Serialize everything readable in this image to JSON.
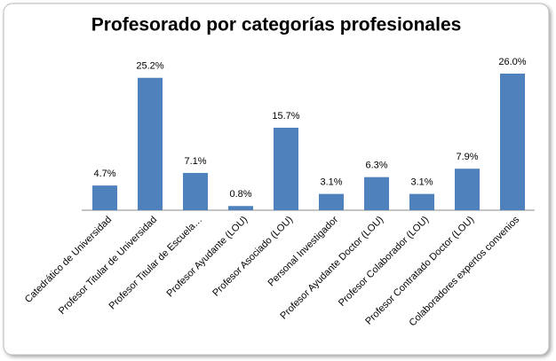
{
  "chart_data": {
    "type": "bar",
    "title": "Profesorado por categorías profesionales",
    "categories": [
      "Catedrático de Universidad",
      "Profesor Titular de Universidad",
      "Profesor Titular de Escuela…",
      "Profesor Ayudante (LOU)",
      "Profesor Asociado (LOU)",
      "Personal Investigador",
      "Profesor Ayudante Doctor (LOU)",
      "Profesor Colaborador (LOU)",
      "Profesor Contratado Doctor (LOU)",
      "Colaboradores expertos convenios"
    ],
    "values": [
      4.7,
      25.2,
      7.1,
      0.8,
      15.7,
      3.1,
      6.3,
      3.1,
      7.9,
      26.0
    ],
    "value_labels": [
      "4.7%",
      "25.2%",
      "7.1%",
      "0.8%",
      "15.7%",
      "3.1%",
      "6.3%",
      "3.1%",
      "7.9%",
      "26.0%"
    ],
    "color": "#4f81bd"
  }
}
